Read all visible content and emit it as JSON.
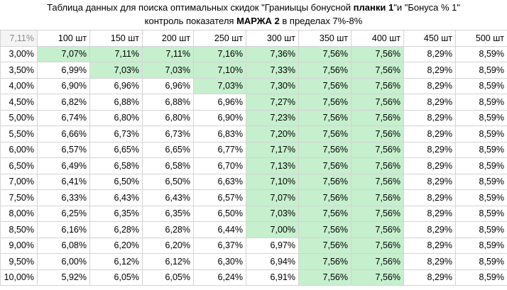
{
  "title": {
    "line1_pre": "Таблица данных для поиска оптимальных скидок \"Граниыцы бонусной ",
    "line1_bold": "планки 1",
    "line1_post": "\"и \"Бонуса % 1\"",
    "line2_pre": "контроль показателя ",
    "line2_bold": "МАРЖА 2",
    "line2_post": " в пределах 7%-8%"
  },
  "table": {
    "corner": "7,11%",
    "columns": [
      "100 шт",
      "150 шт",
      "200 шт",
      "250 шт",
      "300 шт",
      "350 шт",
      "400 шт",
      "450 шт",
      "500 шт"
    ],
    "highlight_color": "#c6efce",
    "rows": [
      {
        "label": "3,00%",
        "values": [
          "7,07%",
          "7,11%",
          "7,11%",
          "7,16%",
          "7,36%",
          "7,56%",
          "7,56%",
          "8,29%",
          "8,59%"
        ],
        "green": [
          true,
          true,
          true,
          true,
          true,
          true,
          true,
          false,
          false
        ]
      },
      {
        "label": "3,50%",
        "values": [
          "6,99%",
          "7,03%",
          "7,03%",
          "7,10%",
          "7,33%",
          "7,56%",
          "7,56%",
          "8,29%",
          "8,59%"
        ],
        "green": [
          false,
          true,
          true,
          true,
          true,
          true,
          true,
          false,
          false
        ]
      },
      {
        "label": "4,00%",
        "values": [
          "6,90%",
          "6,96%",
          "6,96%",
          "7,03%",
          "7,30%",
          "7,56%",
          "7,56%",
          "8,29%",
          "8,59%"
        ],
        "green": [
          false,
          false,
          false,
          true,
          true,
          true,
          true,
          false,
          false
        ]
      },
      {
        "label": "4,50%",
        "values": [
          "6,82%",
          "6,88%",
          "6,88%",
          "6,96%",
          "7,27%",
          "7,56%",
          "7,56%",
          "8,29%",
          "8,59%"
        ],
        "green": [
          false,
          false,
          false,
          false,
          true,
          true,
          true,
          false,
          false
        ]
      },
      {
        "label": "5,00%",
        "values": [
          "6,74%",
          "6,80%",
          "6,80%",
          "6,90%",
          "7,23%",
          "7,56%",
          "7,56%",
          "8,29%",
          "8,59%"
        ],
        "green": [
          false,
          false,
          false,
          false,
          true,
          true,
          true,
          false,
          false
        ]
      },
      {
        "label": "5,50%",
        "values": [
          "6,66%",
          "6,73%",
          "6,73%",
          "6,83%",
          "7,20%",
          "7,56%",
          "7,56%",
          "8,29%",
          "8,59%"
        ],
        "green": [
          false,
          false,
          false,
          false,
          true,
          true,
          true,
          false,
          false
        ]
      },
      {
        "label": "6,00%",
        "values": [
          "6,57%",
          "6,65%",
          "6,65%",
          "6,77%",
          "7,17%",
          "7,56%",
          "7,56%",
          "8,29%",
          "8,59%"
        ],
        "green": [
          false,
          false,
          false,
          false,
          true,
          true,
          true,
          false,
          false
        ]
      },
      {
        "label": "6,50%",
        "values": [
          "6,49%",
          "6,58%",
          "6,58%",
          "6,70%",
          "7,13%",
          "7,56%",
          "7,56%",
          "8,29%",
          "8,59%"
        ],
        "green": [
          false,
          false,
          false,
          false,
          true,
          true,
          true,
          false,
          false
        ]
      },
      {
        "label": "7,00%",
        "values": [
          "6,41%",
          "6,50%",
          "6,50%",
          "6,63%",
          "7,10%",
          "7,56%",
          "7,56%",
          "8,29%",
          "8,59%"
        ],
        "green": [
          false,
          false,
          false,
          false,
          true,
          true,
          true,
          false,
          false
        ]
      },
      {
        "label": "7,50%",
        "values": [
          "6,33%",
          "6,43%",
          "6,43%",
          "6,57%",
          "7,07%",
          "7,56%",
          "7,56%",
          "8,29%",
          "8,59%"
        ],
        "green": [
          false,
          false,
          false,
          false,
          true,
          true,
          true,
          false,
          false
        ]
      },
      {
        "label": "8,00%",
        "values": [
          "6,25%",
          "6,35%",
          "6,35%",
          "6,50%",
          "7,03%",
          "7,56%",
          "7,56%",
          "8,29%",
          "8,59%"
        ],
        "green": [
          false,
          false,
          false,
          false,
          true,
          true,
          true,
          false,
          false
        ]
      },
      {
        "label": "8,50%",
        "values": [
          "6,16%",
          "6,28%",
          "6,28%",
          "6,44%",
          "7,00%",
          "7,56%",
          "7,56%",
          "8,29%",
          "8,59%"
        ],
        "green": [
          false,
          false,
          false,
          false,
          true,
          true,
          true,
          false,
          false
        ]
      },
      {
        "label": "9,00%",
        "values": [
          "6,08%",
          "6,20%",
          "6,20%",
          "6,37%",
          "6,97%",
          "7,56%",
          "7,56%",
          "8,29%",
          "8,59%"
        ],
        "green": [
          false,
          false,
          false,
          false,
          false,
          true,
          true,
          false,
          false
        ]
      },
      {
        "label": "9,50%",
        "values": [
          "6,00%",
          "6,12%",
          "6,12%",
          "6,30%",
          "6,94%",
          "7,56%",
          "7,56%",
          "8,29%",
          "8,59%"
        ],
        "green": [
          false,
          false,
          false,
          false,
          false,
          true,
          true,
          false,
          false
        ]
      },
      {
        "label": "10,00%",
        "values": [
          "5,92%",
          "6,05%",
          "6,05%",
          "6,24%",
          "6,91%",
          "7,56%",
          "7,56%",
          "8,29%",
          "8,59%"
        ],
        "green": [
          false,
          false,
          false,
          false,
          false,
          true,
          true,
          false,
          false
        ]
      }
    ]
  }
}
